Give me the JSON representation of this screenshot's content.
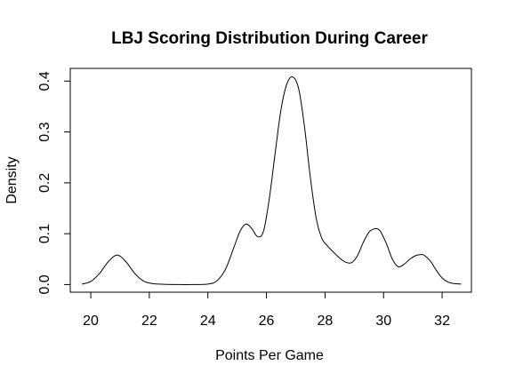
{
  "chart_data": {
    "type": "line",
    "title": "LBJ Scoring Distribution During Career",
    "xlabel": "Points Per Game",
    "ylabel": "Density",
    "xlim": [
      19.3,
      33.0
    ],
    "ylim": [
      -0.015,
      0.425
    ],
    "x_ticks": [
      20,
      22,
      24,
      26,
      28,
      30,
      32
    ],
    "y_ticks": [
      0.0,
      0.1,
      0.2,
      0.3,
      0.4
    ],
    "x_tick_labels": [
      "20",
      "22",
      "24",
      "26",
      "28",
      "30",
      "32"
    ],
    "y_tick_labels": [
      "0.0",
      "0.1",
      "0.2",
      "0.3",
      "0.4"
    ],
    "grid": false,
    "legend": "none",
    "series": [
      {
        "x": [
          19.7,
          20.0,
          20.3,
          20.6,
          20.9,
          21.2,
          21.5,
          21.8,
          22.1,
          22.5,
          23.0,
          23.5,
          24.0,
          24.3,
          24.6,
          24.9,
          25.1,
          25.3,
          25.5,
          25.7,
          25.9,
          26.1,
          26.3,
          26.5,
          26.7,
          26.9,
          27.1,
          27.3,
          27.5,
          27.7,
          27.9,
          28.1,
          28.3,
          28.5,
          28.7,
          28.9,
          29.1,
          29.3,
          29.5,
          29.7,
          29.8,
          29.9,
          30.1,
          30.3,
          30.5,
          30.7,
          30.9,
          31.1,
          31.3,
          31.4,
          31.6,
          31.8,
          32.0,
          32.2,
          32.4,
          32.65
        ],
        "y": [
          0.001,
          0.006,
          0.022,
          0.045,
          0.058,
          0.045,
          0.022,
          0.007,
          0.002,
          0.0005,
          0.0,
          0.0,
          0.001,
          0.007,
          0.03,
          0.075,
          0.105,
          0.119,
          0.11,
          0.094,
          0.105,
          0.17,
          0.26,
          0.345,
          0.395,
          0.408,
          0.385,
          0.31,
          0.21,
          0.13,
          0.09,
          0.075,
          0.063,
          0.052,
          0.044,
          0.043,
          0.056,
          0.082,
          0.103,
          0.11,
          0.109,
          0.104,
          0.08,
          0.05,
          0.035,
          0.04,
          0.05,
          0.057,
          0.059,
          0.057,
          0.046,
          0.028,
          0.013,
          0.005,
          0.002,
          0.001
        ]
      }
    ]
  }
}
